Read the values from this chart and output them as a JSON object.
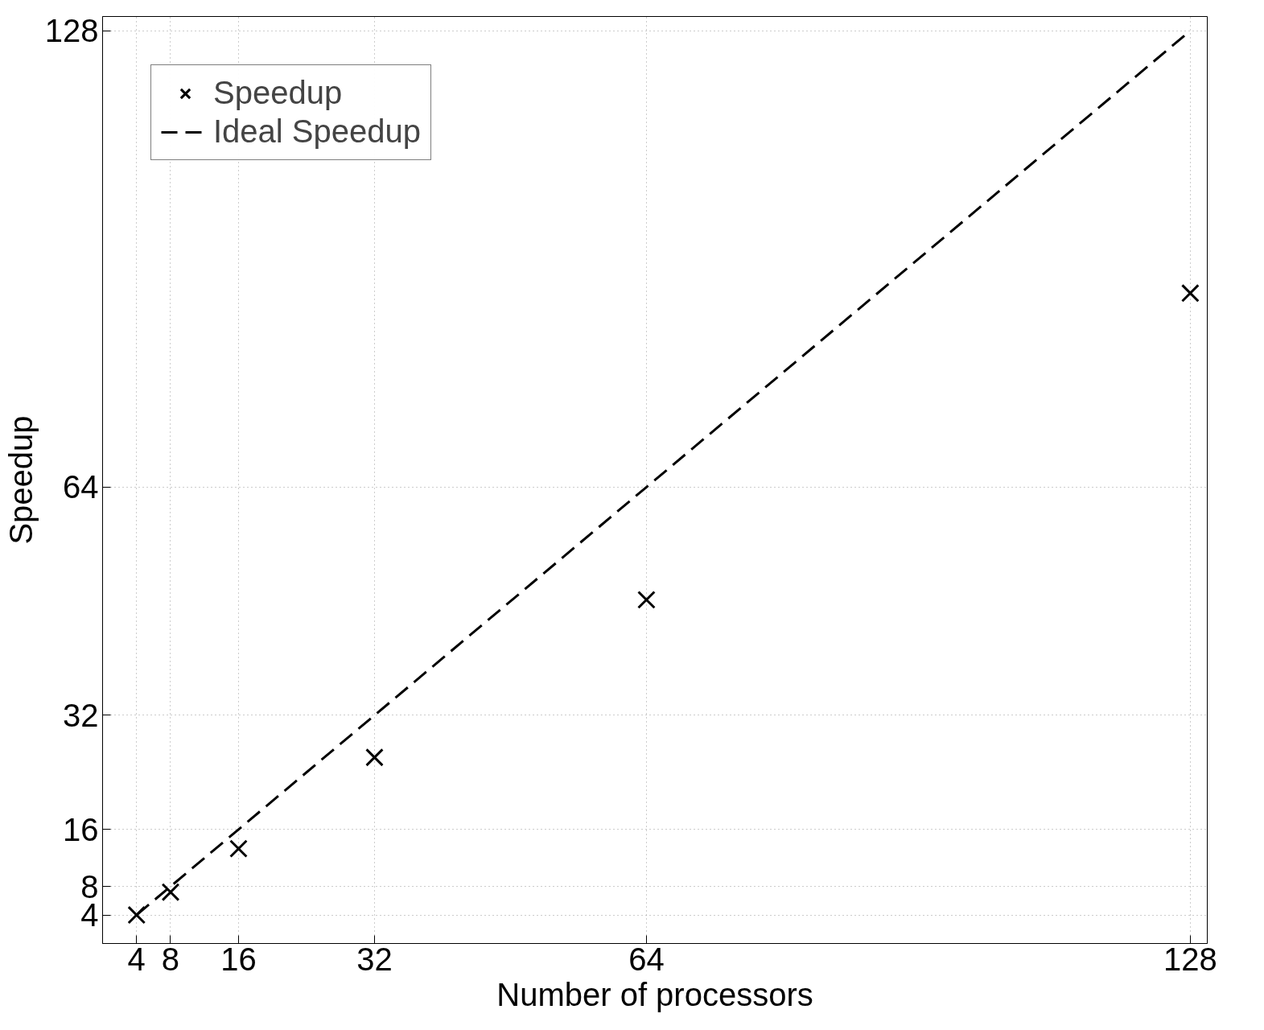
{
  "chart_data": {
    "type": "scatter",
    "xlabel": "Number of processors",
    "ylabel": "Speedup",
    "xlim": [
      0,
      130
    ],
    "ylim": [
      0,
      130
    ],
    "xticks": [
      4,
      8,
      16,
      32,
      64,
      128
    ],
    "yticks": [
      4,
      8,
      16,
      32,
      64,
      128
    ],
    "grid": true,
    "legend": "top left",
    "series": [
      {
        "name": "Speedup",
        "marker": "cross",
        "color": "#000000",
        "x": [
          4,
          8,
          16,
          32,
          64,
          128
        ],
        "values": [
          4,
          7.2,
          13.3,
          26.1,
          48.2,
          91.2
        ]
      },
      {
        "name": "Ideal Speedup",
        "type": "line",
        "line_style": "dashed",
        "color": "#000000",
        "x": [
          4,
          128
        ],
        "values": [
          4,
          128
        ]
      }
    ]
  }
}
